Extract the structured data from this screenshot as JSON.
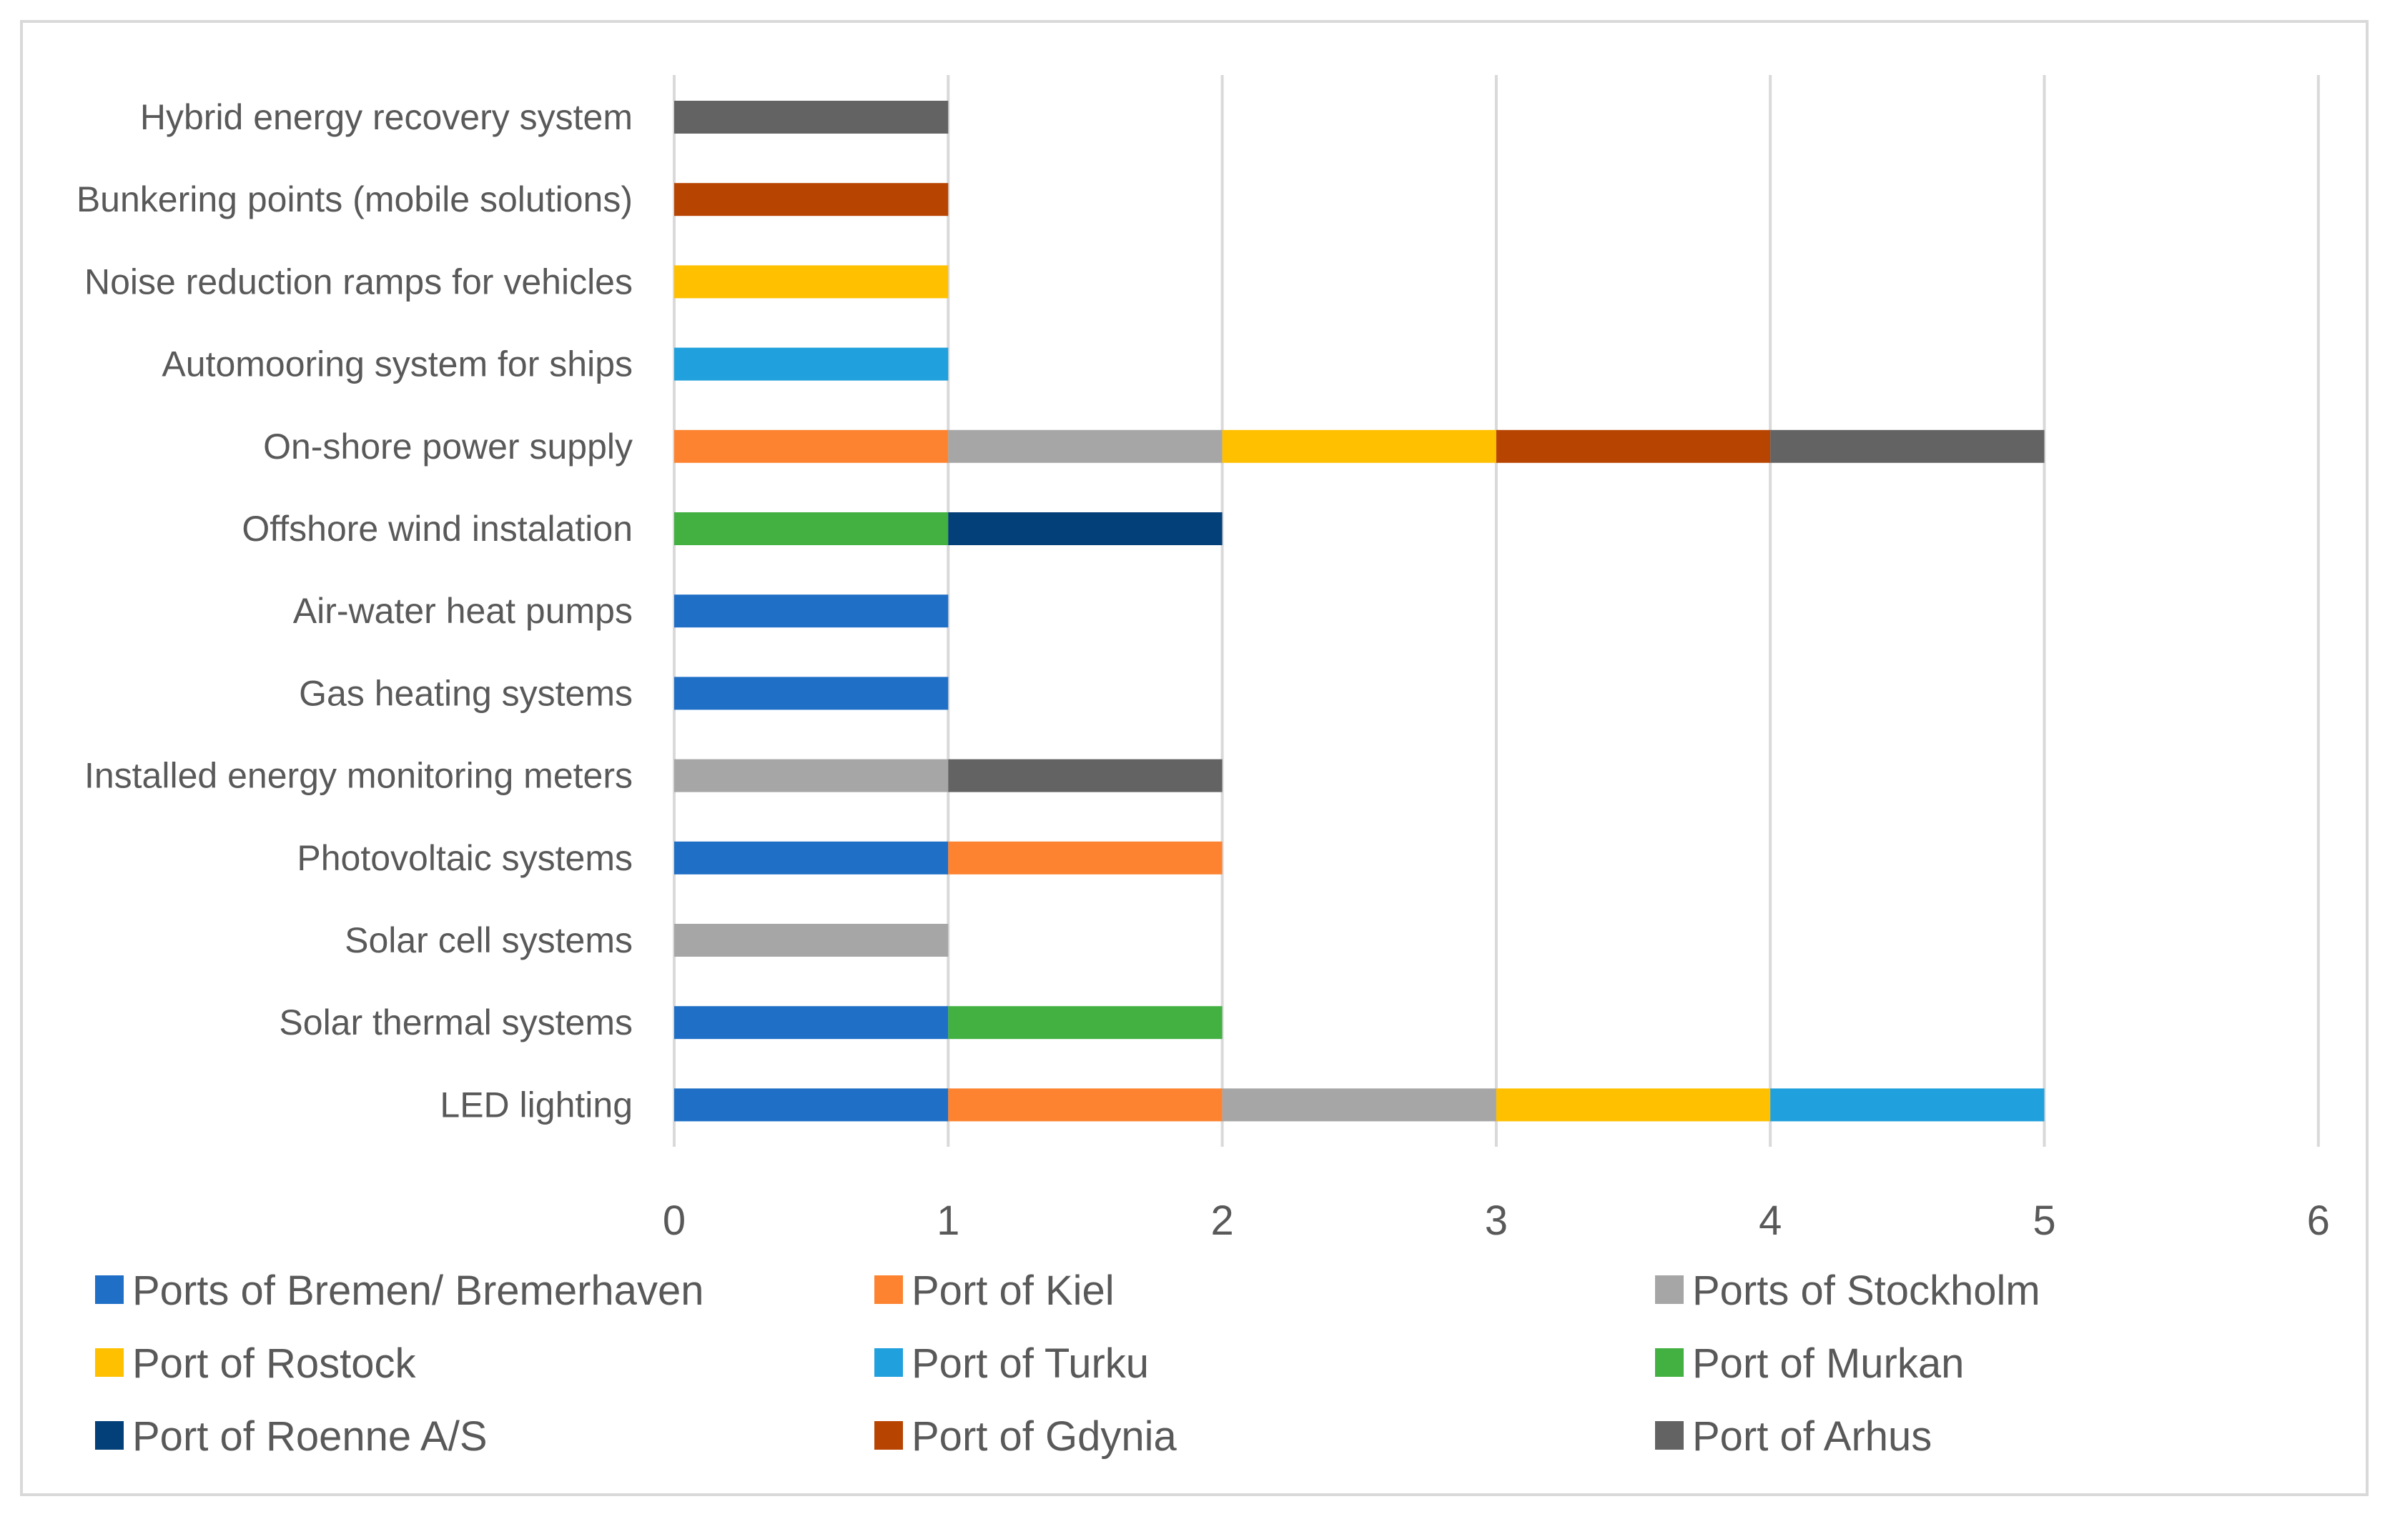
{
  "chart_data": {
    "type": "bar",
    "orientation": "horizontal",
    "stacked": true,
    "title": "",
    "xlabel": "",
    "ylabel": "",
    "xlim": [
      0,
      6
    ],
    "x_ticks": [
      0,
      1,
      2,
      3,
      4,
      5,
      6
    ],
    "grid": true,
    "legend_position": "bottom",
    "categories": [
      "LED lighting",
      "Solar thermal systems",
      "Solar cell systems",
      "Photovoltaic systems",
      "Installed energy monitoring meters",
      "Gas heating systems",
      "Air-water heat pumps",
      "Offshore wind instalation",
      "On-shore power supply",
      "Automooring system for ships",
      "Noise reduction ramps for vehicles",
      "Bunkering points (mobile solutions)",
      "Hybrid energy recovery system"
    ],
    "series": [
      {
        "name": "Ports of Bremen/ Bremerhaven",
        "color": "#1f6fc6",
        "values": [
          1,
          1,
          0,
          1,
          0,
          1,
          1,
          0,
          0,
          0,
          0,
          0,
          0
        ]
      },
      {
        "name": "Port of Kiel",
        "color": "#fd8330",
        "values": [
          1,
          0,
          0,
          1,
          0,
          0,
          0,
          0,
          1,
          0,
          0,
          0,
          0
        ]
      },
      {
        "name": "Ports of Stockholm",
        "color": "#a6a6a6",
        "values": [
          1,
          0,
          1,
          0,
          1,
          0,
          0,
          0,
          1,
          0,
          0,
          0,
          0
        ]
      },
      {
        "name": "Port of Rostock",
        "color": "#ffc000",
        "values": [
          1,
          0,
          0,
          0,
          0,
          0,
          0,
          0,
          1,
          0,
          1,
          0,
          0
        ]
      },
      {
        "name": "Port of Turku",
        "color": "#20a0dc",
        "values": [
          1,
          0,
          0,
          0,
          0,
          0,
          0,
          0,
          0,
          1,
          0,
          0,
          0
        ]
      },
      {
        "name": "Port of Murkan",
        "color": "#43b042",
        "values": [
          0,
          1,
          0,
          0,
          0,
          0,
          0,
          1,
          0,
          0,
          0,
          0,
          0
        ]
      },
      {
        "name": "Port of Roenne A/S",
        "color": "#033f78",
        "values": [
          0,
          0,
          0,
          0,
          0,
          0,
          0,
          1,
          0,
          0,
          0,
          0,
          0
        ]
      },
      {
        "name": "Port of Gdynia",
        "color": "#b84402",
        "values": [
          0,
          0,
          0,
          0,
          0,
          0,
          0,
          0,
          1,
          0,
          0,
          1,
          0
        ]
      },
      {
        "name": "Port of Arhus",
        "color": "#636363",
        "values": [
          0,
          0,
          0,
          0,
          1,
          0,
          0,
          0,
          1,
          0,
          0,
          0,
          1
        ]
      }
    ]
  }
}
